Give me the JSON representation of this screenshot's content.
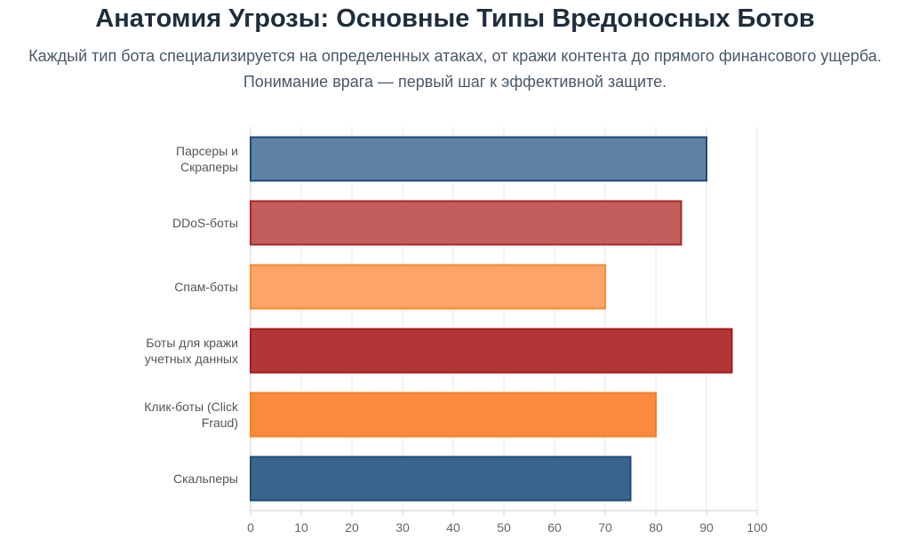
{
  "header": {
    "title": "Анатомия Угрозы: Основные Типы Вредоносных Ботов",
    "subtitle": "Каждый тип бота специализируется на определенных атаках, от кражи контента до прямого финансового ущерба. Понимание врага — первый шаг к эффективной защите."
  },
  "chart_data": {
    "type": "bar",
    "orientation": "horizontal",
    "categories": [
      [
        "Парсеры и",
        "Скраперы"
      ],
      [
        "DDoS-боты"
      ],
      [
        "Спам-боты"
      ],
      [
        "Боты для кражи",
        "учетных данных"
      ],
      [
        "Клик-боты (Click",
        "Fraud)"
      ],
      [
        "Скальперы"
      ]
    ],
    "values": [
      90,
      85,
      70,
      95,
      80,
      75
    ],
    "xlim": [
      0,
      100
    ],
    "ticks": [
      0,
      10,
      20,
      30,
      40,
      50,
      60,
      70,
      80,
      90,
      100
    ],
    "grid": true,
    "legend": "none",
    "colors": [
      {
        "fill": "#5f83a4",
        "stroke": "#1e4a75"
      },
      {
        "fill": "#c25f5c",
        "stroke": "#a82626"
      },
      {
        "fill": "#fda46b",
        "stroke": "#f58a2e"
      },
      {
        "fill": "#b33636",
        "stroke": "#a31a1a"
      },
      {
        "fill": "#fc8a3e",
        "stroke": "#f57f20"
      },
      {
        "fill": "#3a648c",
        "stroke": "#1e4a75"
      }
    ]
  }
}
